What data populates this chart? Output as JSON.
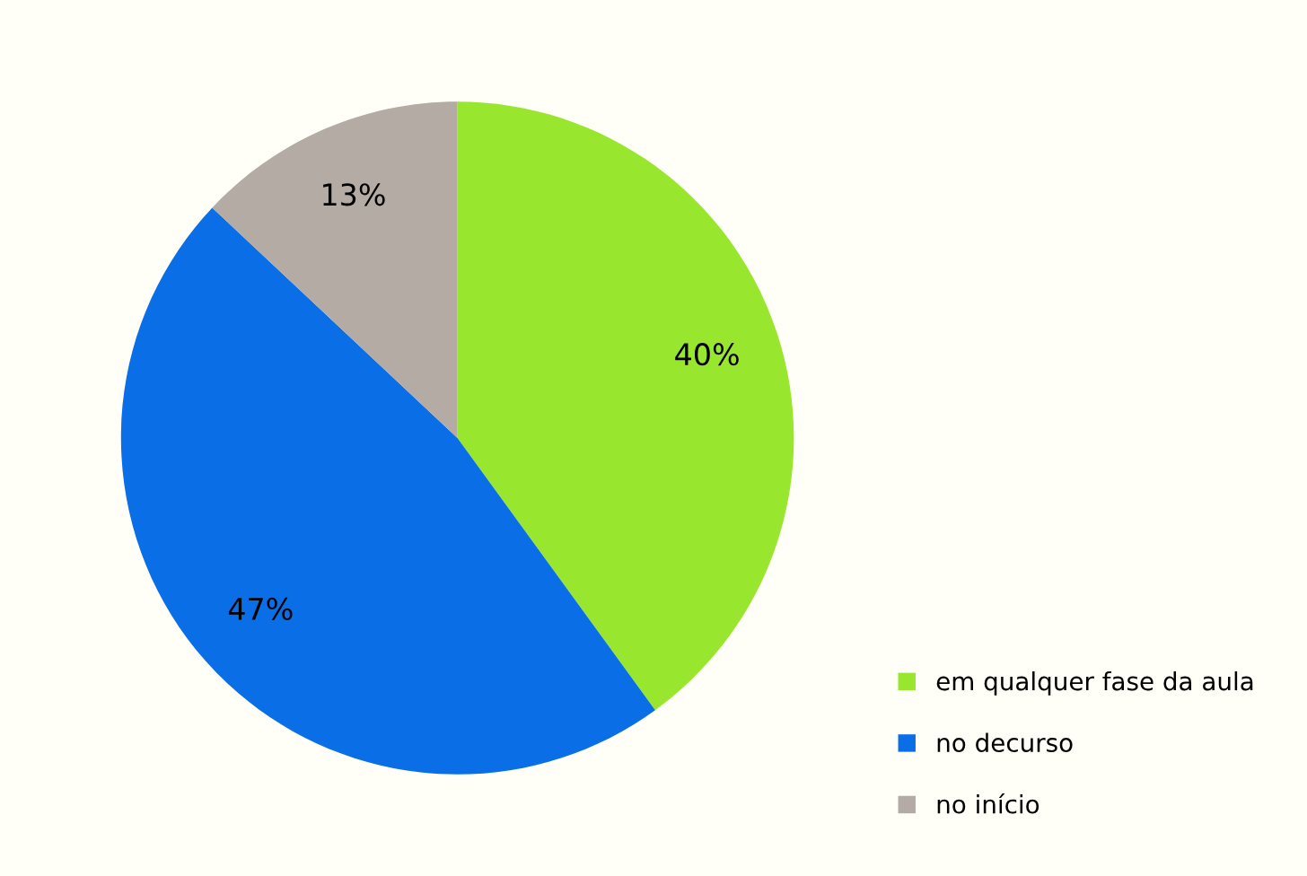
{
  "chart_data": {
    "type": "pie",
    "categories": [
      "em qualquer fase da aula",
      "no decurso",
      "no início"
    ],
    "values": [
      40,
      47,
      13
    ],
    "colors": [
      "#99e62e",
      "#0a6fe6",
      "#b3aba4"
    ],
    "value_labels": [
      "40%",
      "47%",
      "13%"
    ],
    "legend": "bottom right"
  }
}
